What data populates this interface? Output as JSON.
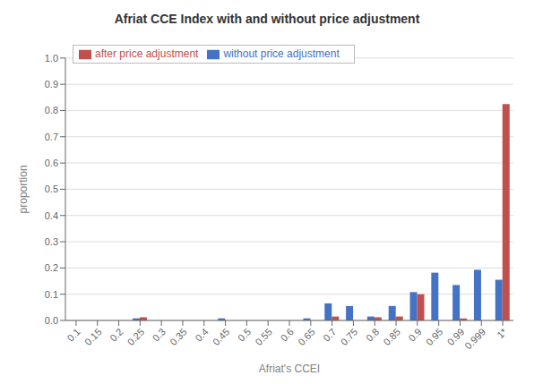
{
  "chart_data": {
    "type": "bar",
    "title": "Afriat CCE Index with and without price adjustment",
    "xlabel": "Afriat's CCEI",
    "ylabel": "proportion",
    "categories": [
      "0.1",
      "0.15",
      "0.2",
      "0.25",
      "0.3",
      "0.35",
      "0.4",
      "0.45",
      "0.5",
      "0.55",
      "0.6",
      "0.65",
      "0.7",
      "0.75",
      "0.8",
      "0.85",
      "0.9",
      "0.95",
      "0.99",
      "0.999",
      "1*"
    ],
    "series": [
      {
        "name": "without price adjustment",
        "color": "#4472C4",
        "values": [
          0.0,
          0.0,
          0.0,
          0.008,
          0.0,
          0.0,
          0.0,
          0.008,
          0.0,
          0.0,
          0.0,
          0.008,
          0.065,
          0.055,
          0.015,
          0.055,
          0.108,
          0.182,
          0.135,
          0.193,
          0.155
        ]
      },
      {
        "name": "after price adjustment",
        "color": "#C0504D",
        "values": [
          0.0,
          0.0,
          0.0,
          0.012,
          0.0,
          0.0,
          0.0,
          0.0,
          0.0,
          0.0,
          0.0,
          0.0,
          0.015,
          0.0,
          0.012,
          0.015,
          0.1,
          0.0,
          0.008,
          0.0,
          0.825
        ]
      }
    ],
    "ylim": [
      0.0,
      1.0
    ],
    "yticks": [
      {
        "value": 0.0,
        "label": "0.0"
      },
      0.1,
      0.2,
      0.3,
      0.4,
      0.5,
      0.6,
      0.7,
      0.8,
      0.9,
      {
        "value": 1.0,
        "label": "1.0"
      }
    ],
    "grid": true,
    "legend": "upper left"
  }
}
